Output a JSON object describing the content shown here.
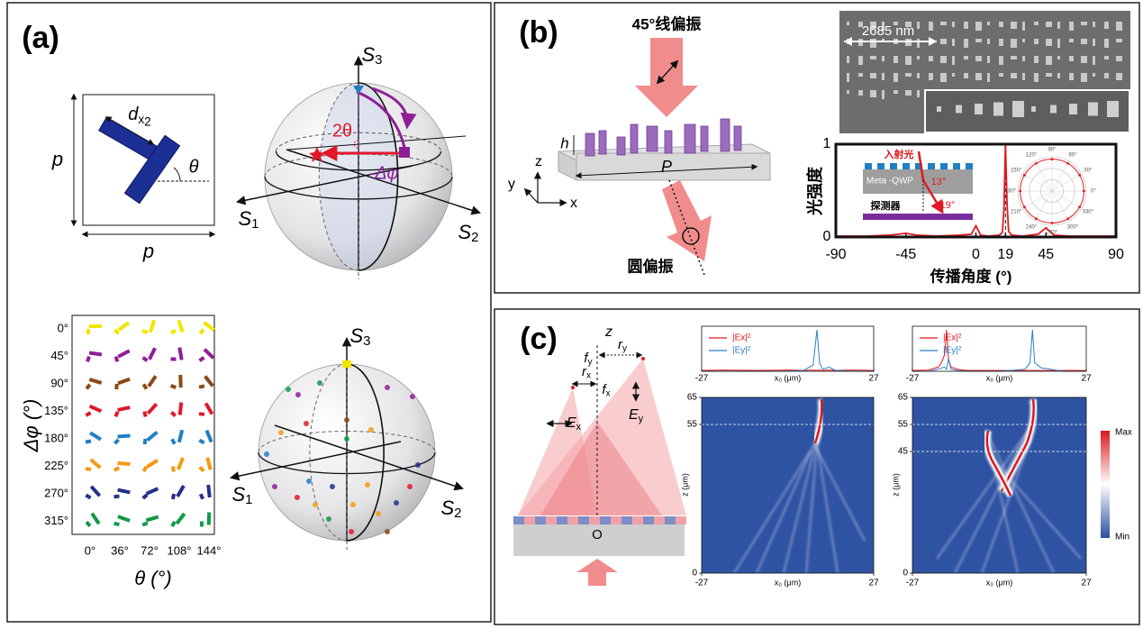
{
  "panel_a": {
    "label": "(a)",
    "unit_cell": {
      "side_left": "p",
      "side_bottom": "p",
      "length": "d",
      "length_sub": "x",
      "length_sub2": "2",
      "angle": "θ"
    },
    "sphere_upper": {
      "s3": "S",
      "s3_sub": "3",
      "s1": "S",
      "s1_sub": "1",
      "s2": "S",
      "s2_sub": "2",
      "polar_angle": "2θ",
      "azimuth": "-Δφ"
    },
    "orientation_grid": {
      "rows": [
        "0°",
        "45°",
        "90°",
        "135°",
        "180°",
        "225°",
        "270°",
        "315°"
      ],
      "row_colors": [
        "#f2e600",
        "#8e1f96",
        "#8b4a16",
        "#e0192a",
        "#1f7fc4",
        "#f29a12",
        "#22308a",
        "#139a45"
      ],
      "columns": [
        "0°",
        "36°",
        "72°",
        "108°",
        "144°"
      ],
      "y_label": "Δφ (°)",
      "x_label": "θ (°)"
    },
    "sphere_lower": {
      "s3": "S",
      "s3_sub": "3",
      "s1": "S",
      "s1_sub": "1",
      "s2": "S",
      "s2_sub": "2"
    }
  },
  "panel_b": {
    "label": "(b)",
    "input": "45°线偏振",
    "height": "h",
    "period": "P",
    "axis_z": "z",
    "axis_y": "y",
    "axis_x": "x",
    "output": "圆偏振",
    "sem_scale": "2685 nm",
    "plot": {
      "type": "line",
      "x": [
        -90,
        -70,
        -55,
        -45,
        -38,
        -25,
        -10,
        -3,
        0,
        3,
        8,
        15,
        17,
        18,
        19,
        20,
        21,
        23,
        30,
        40,
        45,
        50,
        60,
        75,
        90
      ],
      "values": [
        0.01,
        0.01,
        0.02,
        0.04,
        0.02,
        0.01,
        0.02,
        0.03,
        0.12,
        0.02,
        0.01,
        0.02,
        0.05,
        0.3,
        1,
        0.35,
        0.06,
        0.02,
        0.01,
        0.03,
        0.1,
        0.02,
        0.01,
        0.01,
        0.01
      ],
      "color": "#e0191f",
      "xlim": [
        -90,
        90
      ],
      "ylim": [
        0,
        1
      ],
      "xticks": [
        -90,
        -45,
        0,
        19,
        45,
        90
      ],
      "yticks": [
        0,
        1
      ],
      "y_label": "光强度",
      "x_label": "传播角度 (°)",
      "inset": {
        "incident": "入射光",
        "metasurface": "Meta -QWP",
        "angle_in": "13°",
        "angle_out": "19°",
        "detector": "探测器"
      },
      "polar_labels": [
        "0°",
        "30°",
        "60°",
        "90°",
        "120°",
        "150°",
        "180°",
        "210°",
        "240°",
        "270°",
        "300°",
        "330°"
      ]
    }
  },
  "panel_c": {
    "label": "(c)",
    "axis": "z",
    "focal_y": "f",
    "focal_y_sub": "y",
    "focal_x": "f",
    "focal_x_sub": "x",
    "offset_x": "r",
    "offset_x_sub": "x",
    "offset_y": "r",
    "offset_y_sub": "y",
    "field_x": "E",
    "field_x_sub": "x",
    "field_y": "E",
    "field_y_sub": "y",
    "origin": "O",
    "profiles": [
      {
        "type": "line",
        "x": [
          -27,
          -20,
          -10,
          0,
          5,
          8,
          9.2,
          10,
          11,
          13,
          15,
          20,
          27
        ],
        "xlim": [
          -27,
          27
        ],
        "ylim": [
          0,
          1
        ],
        "xticks": [
          -27,
          27
        ],
        "x_label": "x₀ (μm)",
        "series": [
          {
            "name": "|Ex|²",
            "color": "#e0191f",
            "values": [
              0.02,
              0.03,
              0.02,
              0.03,
              0.02,
              0.03,
              0.02,
              0.03,
              0.02,
              0.03,
              0.02,
              0.03,
              0.02
            ]
          },
          {
            "name": "|Ey|²",
            "color": "#2a7fc8",
            "values": [
              0,
              0,
              0,
              0,
              0.02,
              0.15,
              1,
              0.2,
              0.05,
              0.1,
              0.02,
              0,
              0
            ]
          }
        ]
      },
      {
        "type": "line",
        "x": [
          -27,
          -22,
          -19,
          -18,
          -17,
          -16.4,
          -15.8,
          -15,
          -13,
          -10,
          0,
          8,
          9.5,
          10.3,
          11,
          13,
          20,
          27
        ],
        "xlim": [
          -27,
          27
        ],
        "ylim": [
          0,
          1
        ],
        "xticks": [
          -27,
          27
        ],
        "x_label": "x₀ (μm)",
        "series": [
          {
            "name": "|Ex|²",
            "color": "#e0191f",
            "values": [
              0.02,
              0.03,
              0.1,
              0.2,
              0.4,
              1,
              0.3,
              0.1,
              0.05,
              0.02,
              0.02,
              0.02,
              0.02,
              0.02,
              0.02,
              0.02,
              0.02,
              0.02
            ]
          },
          {
            "name": "|Ey|²",
            "color": "#2a7fc8",
            "values": [
              0,
              0,
              0.05,
              0.08,
              0.1,
              0.05,
              0.3,
              0.05,
              0.02,
              0,
              0,
              0.05,
              0.2,
              1,
              0.2,
              0.08,
              0,
              0
            ]
          }
        ]
      }
    ],
    "maps": [
      {
        "xlim": [
          -27,
          27
        ],
        "ylim": [
          0,
          65
        ],
        "xticks": [
          -27,
          27
        ],
        "yticks": [
          0,
          55,
          65
        ],
        "focus": [
          55
        ],
        "x_label": "x₀ (μm)",
        "y_label": "z (μm)"
      },
      {
        "xlim": [
          -27,
          27
        ],
        "ylim": [
          0,
          65
        ],
        "xticks": [
          -27,
          27
        ],
        "yticks": [
          0,
          45,
          55,
          65
        ],
        "focus": [
          45,
          55
        ],
        "x_label": "x₀ (μm)",
        "y_label": "z (μm)"
      }
    ],
    "colorbar": {
      "max": "Max",
      "min": "Min"
    }
  }
}
